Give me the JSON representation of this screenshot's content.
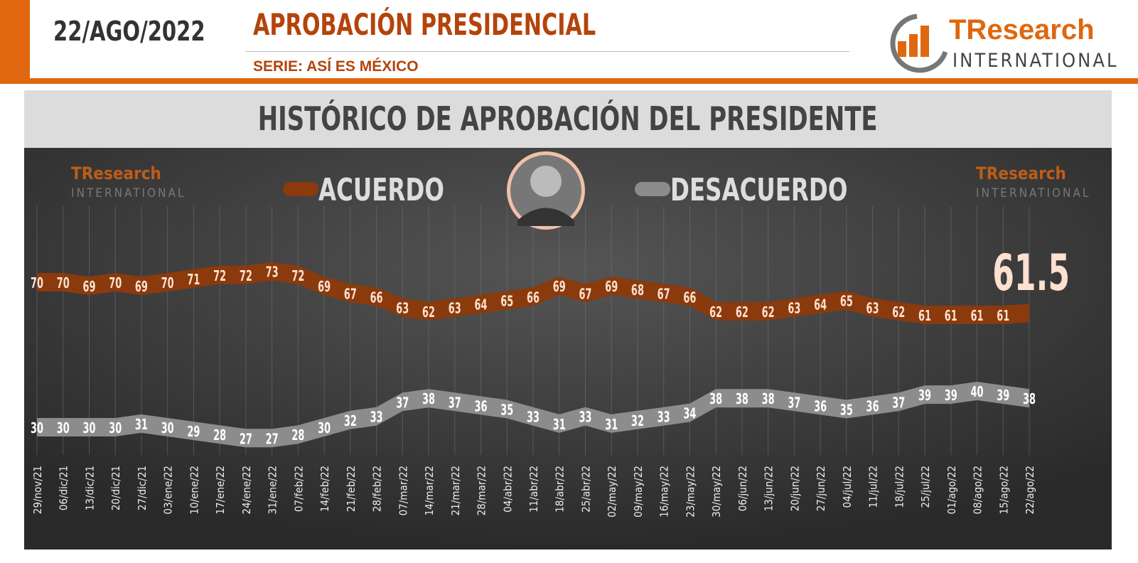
{
  "header": {
    "date": "22/AGO/2022",
    "title": "APROBACIÓN PRESIDENCIAL",
    "subtitle": "SERIE: ASÍ ES MÉXICO"
  },
  "logo": {
    "brand": "TResearch",
    "sub": "INTERNATIONAL"
  },
  "colors": {
    "acuerdo": "#8a3a0c",
    "desacuerdo": "#8c8c8c",
    "accent": "#e0670f",
    "label": "#fde0cf"
  },
  "chart_data": {
    "type": "line",
    "title": "HISTÓRICO DE APROBACIÓN DEL PRESIDENTE",
    "latest_value": "61.5",
    "categories": [
      "29/nov/21",
      "06/dic/21",
      "13/dic/21",
      "20/dic/21",
      "27/dic/21",
      "03/ene/22",
      "10/ene/22",
      "17/ene/22",
      "24/ene/22",
      "31/ene/22",
      "07/feb/22",
      "14/feb/22",
      "21/feb/22",
      "28/feb/22",
      "07/mar/22",
      "14/mar/22",
      "21/mar/22",
      "28/mar/22",
      "04/abr/22",
      "11/abr/22",
      "18/abr/22",
      "25/abr/22",
      "02/may/22",
      "09/may/22",
      "16/may/22",
      "23/may/22",
      "30/may/22",
      "06/jun/22",
      "13/jun/22",
      "20/jun/22",
      "27/jun/22",
      "04/jul/22",
      "11/jul/22",
      "18/jul/22",
      "25/jul/22",
      "01/ago/22",
      "08/ago/22",
      "15/ago/22",
      "22/ago/22"
    ],
    "series": [
      {
        "name": "ACUERDO",
        "values": [
          70,
          70,
          69,
          70,
          69,
          70,
          71,
          72,
          72,
          73,
          72,
          69,
          67,
          66,
          63,
          62,
          63,
          64,
          65,
          66,
          69,
          67,
          69,
          68,
          67,
          66,
          62,
          62,
          62,
          63,
          64,
          65,
          63,
          62,
          61,
          61,
          61,
          61,
          61.5
        ]
      },
      {
        "name": "DESACUERDO",
        "values": [
          30,
          30,
          30,
          30,
          31,
          30,
          29,
          28,
          27,
          27,
          28,
          30,
          32,
          33,
          37,
          38,
          37,
          36,
          35,
          33,
          31,
          33,
          31,
          32,
          33,
          34,
          38,
          38,
          38,
          37,
          36,
          35,
          36,
          37,
          39,
          39,
          40,
          39,
          38
        ]
      }
    ],
    "grid": "vertical",
    "legend": "top-center"
  }
}
